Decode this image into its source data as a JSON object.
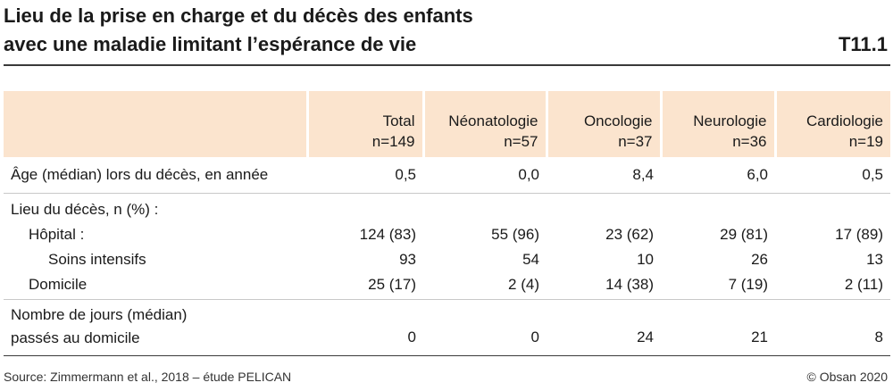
{
  "title": {
    "line1": "Lieu de la prise en charge et du décès des enfants",
    "line2": "avec une maladie limitant l’espérance de vie",
    "table_id": "T11.1"
  },
  "table": {
    "columns": [
      {
        "label": "Total",
        "n": "n=149"
      },
      {
        "label": "Néonatologie",
        "n": "n=57"
      },
      {
        "label": "Oncologie",
        "n": "n=37"
      },
      {
        "label": "Neurologie",
        "n": "n=36"
      },
      {
        "label": "Cardiologie",
        "n": "n=19"
      }
    ],
    "rows": {
      "age": {
        "label": "Âge (médian) lors du décès, en année",
        "values": [
          "0,5",
          "0,0",
          "8,4",
          "6,0",
          "0,5"
        ]
      },
      "lieu": {
        "label": "Lieu du décès, n (%) :"
      },
      "hopital": {
        "label": "Hôpital :",
        "values": [
          "124 (83)",
          "55 (96)",
          "23 (62)",
          "29 (81)",
          "17 (89)"
        ]
      },
      "soins": {
        "label": "Soins intensifs",
        "values": [
          "93",
          "54",
          "10",
          "26",
          "13"
        ]
      },
      "domicile": {
        "label": "Domicile",
        "values": [
          "25 (17)",
          "2 (4)",
          "14 (38)",
          "7 (19)",
          "2 (11)"
        ]
      },
      "jours": {
        "label_line1": "Nombre de jours (médian)",
        "label_line2": "passés au domicile",
        "values": [
          "0",
          "0",
          "24",
          "21",
          "8"
        ]
      }
    }
  },
  "footer": {
    "source": "Source: Zimmermann et al., 2018 – étude PELICAN",
    "copyright": "© Obsan 2020"
  }
}
